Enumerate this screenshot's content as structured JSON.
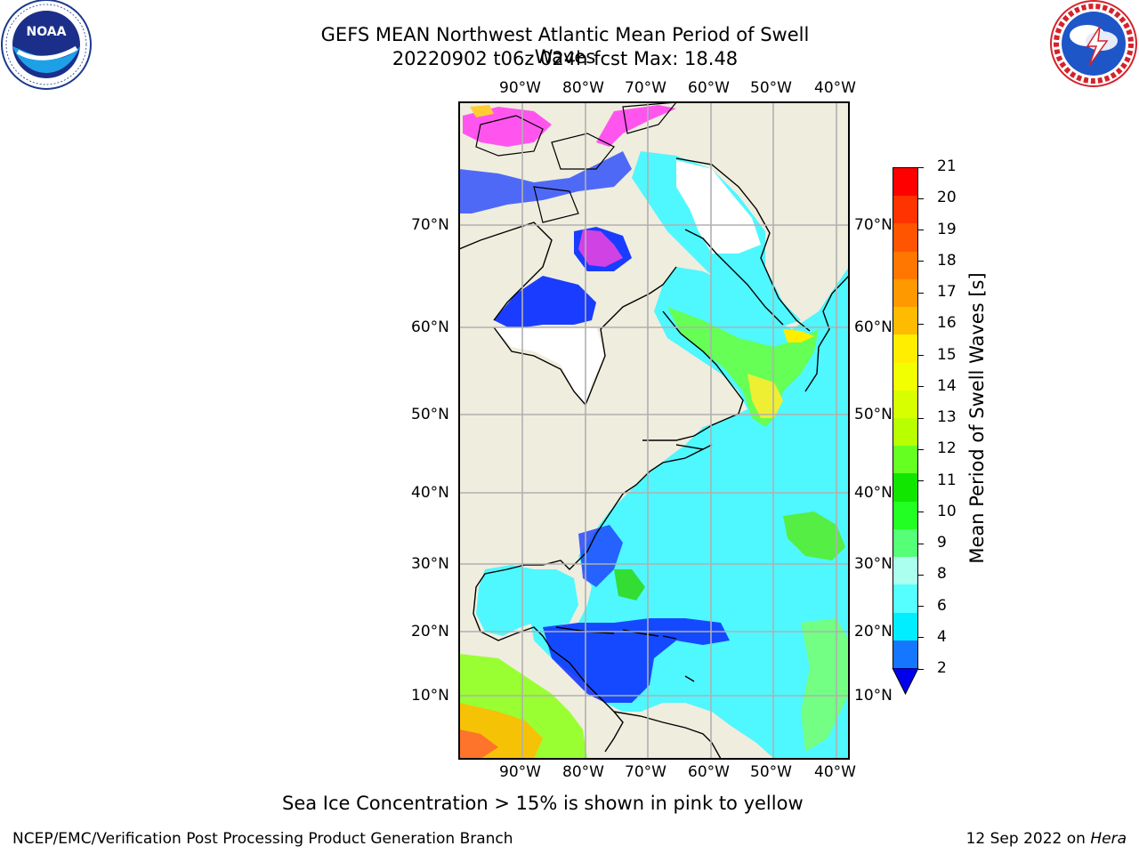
{
  "header": {
    "title_line1": "GEFS MEAN Northwest Atlantic Mean Period of Swell Waves",
    "title_line2": "20220902 t06z 024h fcst   Max: 18.48"
  },
  "logos": {
    "noaa": {
      "text": "NOAA",
      "ring_text": "NATIONAL OCEANIC AND ATMOSPHERIC ADMINISTRATION · U.S. DEPARTMENT OF COMMERCE"
    },
    "nws": {
      "ring_text": "NATIONAL WEATHER SERVICE"
    }
  },
  "map": {
    "lon_labels": [
      "90°W",
      "80°W",
      "70°W",
      "60°W",
      "50°W",
      "40°W"
    ],
    "lat_labels": [
      "70°N",
      "60°N",
      "50°N",
      "40°N",
      "30°N",
      "20°N",
      "10°N"
    ],
    "colors": {
      "land": "#efedde",
      "ocean_base": "#4ff7ff",
      "grid": "#b0b0b0"
    }
  },
  "colorbar": {
    "label": "Mean Period of Swell Waves [s]",
    "ticks": [
      "21",
      "20",
      "19",
      "18",
      "17",
      "16",
      "15",
      "14",
      "13",
      "12",
      "11",
      "10",
      "9",
      "8",
      "6",
      "4",
      "2"
    ],
    "colors": [
      "#ff0000",
      "#ff3300",
      "#ff5500",
      "#ff7700",
      "#ff9900",
      "#ffbb00",
      "#ffee00",
      "#f2ff00",
      "#d8ff00",
      "#b8ff00",
      "#66ff22",
      "#11e600",
      "#22ff22",
      "#55ff77",
      "#aaffee",
      "#55ffff",
      "#00eeff",
      "#1577ff"
    ],
    "extend_color": "#0000ee"
  },
  "notes": {
    "sea_ice": "Sea Ice Concentration > 15% is shown in pink to yellow",
    "credit": "NCEP/EMC/Verification Post Processing Product Generation Branch",
    "date": "12 Sep 2022 on ",
    "host": "Hera"
  }
}
